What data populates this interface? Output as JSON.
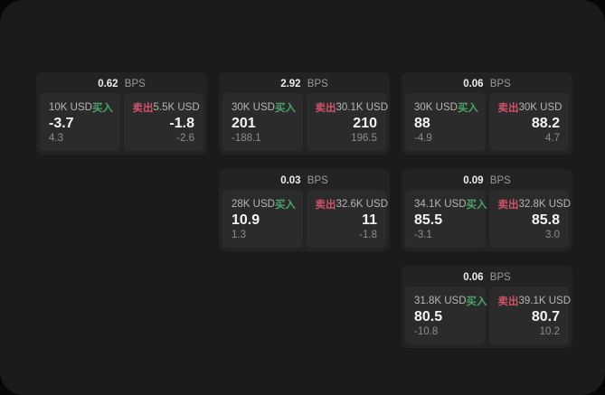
{
  "app": {
    "unit_label": "BPS",
    "buy_label": "买入",
    "sell_label": "卖出"
  },
  "colors": {
    "buy": "#4ba36c",
    "sell": "#cf5268",
    "page_background": "#1b1b1c",
    "card_background": "#232324",
    "panel_background": "#2b2b2c"
  },
  "cards": [
    {
      "row": 1,
      "col": 1,
      "bps": "0.62",
      "buy": {
        "amount": "10K USD",
        "value": "-3.7",
        "change": "4.3"
      },
      "sell": {
        "amount": "5.5K USD",
        "value": "-1.8",
        "change": "-2.6"
      }
    },
    {
      "row": 1,
      "col": 2,
      "bps": "2.92",
      "buy": {
        "amount": "30K USD",
        "value": "201",
        "change": "-188.1"
      },
      "sell": {
        "amount": "30.1K USD",
        "value": "210",
        "change": "196.5"
      }
    },
    {
      "row": 1,
      "col": 3,
      "bps": "0.06",
      "buy": {
        "amount": "30K USD",
        "value": "88",
        "change": "-4.9"
      },
      "sell": {
        "amount": "30K USD",
        "value": "88.2",
        "change": "4.7"
      }
    },
    {
      "row": 2,
      "col": 2,
      "bps": "0.03",
      "buy": {
        "amount": "28K USD",
        "value": "10.9",
        "change": "1.3"
      },
      "sell": {
        "amount": "32.6K USD",
        "value": "11",
        "change": "-1.8"
      }
    },
    {
      "row": 2,
      "col": 3,
      "bps": "0.09",
      "buy": {
        "amount": "34.1K USD",
        "value": "85.5",
        "change": "-3.1"
      },
      "sell": {
        "amount": "32.8K USD",
        "value": "85.8",
        "change": "3.0"
      }
    },
    {
      "row": 3,
      "col": 3,
      "bps": "0.06",
      "buy": {
        "amount": "31.8K USD",
        "value": "80.5",
        "change": "-10.8"
      },
      "sell": {
        "amount": "39.1K USD",
        "value": "80.7",
        "change": "10.2"
      }
    }
  ]
}
